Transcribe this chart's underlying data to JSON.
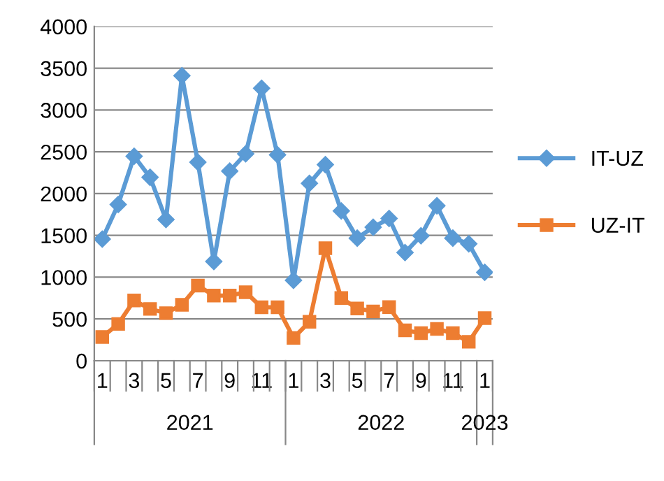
{
  "chart_data": {
    "type": "line",
    "categories": [
      "1",
      null,
      "3",
      null,
      "5",
      null,
      "7",
      null,
      "9",
      null,
      "11",
      null,
      "1",
      null,
      "3",
      null,
      "5",
      null,
      "7",
      null,
      "9",
      null,
      "11",
      null,
      "1"
    ],
    "series": [
      {
        "name": "IT-UZ",
        "color": "#5b9bd5",
        "marker": "diamond",
        "values": [
          1455,
          1870,
          2447,
          2195,
          1690,
          3410,
          2375,
          1187,
          2269,
          2476,
          3260,
          2464,
          963,
          2123,
          2346,
          1792,
          1467,
          1597,
          1702,
          1294,
          1496,
          1854,
          1467,
          1400,
          1059
        ]
      },
      {
        "name": "UZ-IT",
        "color": "#ed7d31",
        "marker": "square",
        "values": [
          284,
          440,
          722,
          620,
          570,
          670,
          900,
          780,
          780,
          820,
          640,
          640,
          273,
          466,
          1347,
          750,
          625,
          591,
          642,
          364,
          330,
          381,
          330,
          227,
          511
        ]
      }
    ],
    "ylim": [
      0,
      4000
    ],
    "yticks": [
      0,
      500,
      1000,
      1500,
      2000,
      2500,
      3000,
      3500,
      4000
    ],
    "grid": "y",
    "legend": "right",
    "line_style": "solid",
    "annotations": [
      "2021",
      "2022",
      "2023"
    ]
  }
}
